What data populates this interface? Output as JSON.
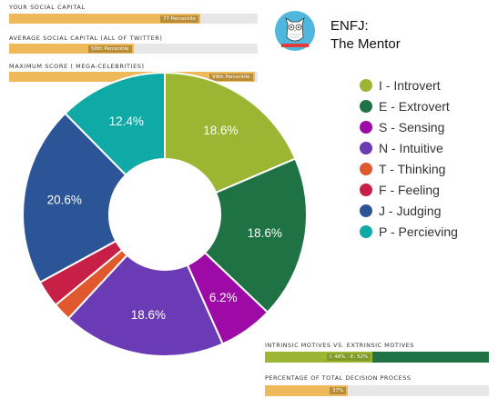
{
  "social_capital": [
    {
      "label": "YOUR SOCIAL CAPITAL",
      "tag": "77 Percentile",
      "fill": 0.77
    },
    {
      "label": "AVERAGE SOCIAL CAPITAL (ALL OF TWITTER)",
      "tag": "50th Percentile",
      "fill": 0.5
    },
    {
      "label": "MAXIMUM SCORE ( MEGA-CELEBRITIES)",
      "tag": "99th Percentile",
      "fill": 0.99
    }
  ],
  "personality": {
    "code": "ENFJ:",
    "name": "The Mentor",
    "avatar_icon": "owl-icon"
  },
  "chart_data": {
    "type": "pie",
    "variant": "donut",
    "categories": [
      "I - Introvert",
      "E - Extrovert",
      "S - Sensing",
      "N - Intuitive",
      "T - Thinking",
      "F - Feeling",
      "J - Judging",
      "P - Percieving"
    ],
    "values": [
      18.6,
      18.6,
      6.2,
      18.6,
      2.1,
      3.1,
      20.6,
      12.4
    ],
    "labels": [
      "18.6%",
      "18.6%",
      "6.2%",
      "18.6%",
      "",
      "",
      "20.6%",
      "12.4%"
    ],
    "colors": [
      "#9cb532",
      "#1f7243",
      "#9d0aa6",
      "#6a3bb4",
      "#e0582d",
      "#c71f45",
      "#2c5597",
      "#10aaa6"
    ],
    "legend_position": "right"
  },
  "motives": {
    "label": "INTRINSIC MOTIVES VS. EXTRINSIC MOTIVES",
    "tag": "I: 48% - E: 52%",
    "intrinsic": 0.48,
    "intrinsic_color": "#9cb532",
    "extrinsic_color": "#1f7243"
  },
  "decision": {
    "label": "PERCENTAGE OF TOTAL DECISION PROCESS",
    "tag": "37%",
    "fill": 0.37
  }
}
